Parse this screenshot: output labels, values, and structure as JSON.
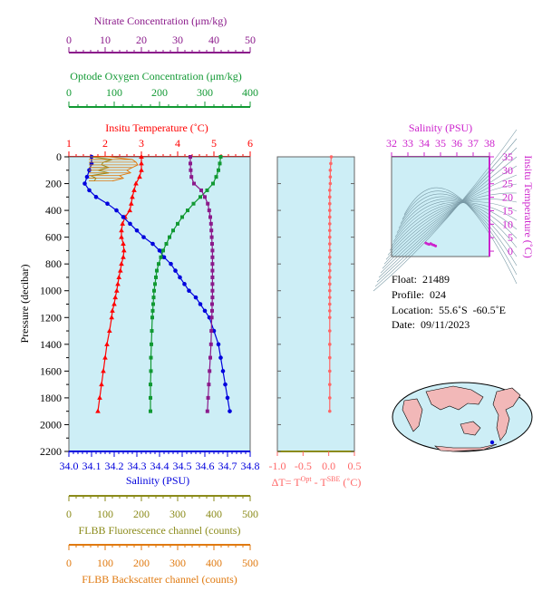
{
  "colors": {
    "nitrate": "#8b1a8b",
    "oxygen": "#119933",
    "temperature": "#ff0000",
    "salinity": "#0000dd",
    "fluor": "#8b8b1a",
    "backscatter": "#e07a10",
    "dt": "#ff6666",
    "inset_salinity": "#cc22cc",
    "panel_bg": "#cdeef6"
  },
  "info": {
    "float_label": "Float:",
    "float_value": "21489",
    "profile_label": "Profile:",
    "profile_value": "024",
    "location_label": "Location:",
    "location_value": "55.6˚S  -60.5˚E",
    "date_label": "Date:",
    "date_value": "09/11/2023"
  },
  "chart_data": [
    {
      "type": "line",
      "name": "main-profile",
      "ylabel": "Pressure (decibar)",
      "ylim": [
        2200,
        0
      ],
      "yticks": [
        0,
        200,
        400,
        600,
        800,
        1000,
        1200,
        1400,
        1600,
        1800,
        2000,
        2200
      ],
      "axes": {
        "nitrate": {
          "label": "Nitrate Concentration (μm/kg)",
          "range": [
            0,
            50
          ],
          "ticks": [
            0,
            10,
            20,
            30,
            40,
            50
          ]
        },
        "oxygen": {
          "label": "Optode Oxygen Concentration (μm/kg)",
          "range": [
            0,
            400
          ],
          "ticks": [
            0,
            100,
            200,
            300,
            400
          ]
        },
        "temperature": {
          "label": "Insitu Temperature (˚C)",
          "range": [
            1,
            6
          ],
          "ticks": [
            1,
            2,
            3,
            4,
            5,
            6
          ]
        },
        "salinity": {
          "label": "Salinity (PSU)",
          "range": [
            34.0,
            34.8
          ],
          "ticks": [
            "34.0",
            "34.1",
            "34.2",
            "34.3",
            "34.4",
            "34.5",
            "34.6",
            "34.7",
            "34.8"
          ]
        },
        "fluor": {
          "label": "FLBB Fluorescence channel (counts)",
          "range": [
            0,
            500
          ],
          "ticks": [
            0,
            100,
            200,
            300,
            400,
            500
          ]
        },
        "backscatter": {
          "label": "FLBB Backscatter channel (counts)",
          "range": [
            0,
            500
          ],
          "ticks": [
            0,
            100,
            200,
            300,
            400,
            500
          ]
        }
      },
      "series": [
        {
          "name": "Temperature",
          "axis": "temperature",
          "marker": "triangle",
          "points": [
            [
              0,
              3.0
            ],
            [
              50,
              3.0
            ],
            [
              100,
              3.0
            ],
            [
              150,
              2.95
            ],
            [
              200,
              2.85
            ],
            [
              250,
              2.8
            ],
            [
              300,
              2.75
            ],
            [
              350,
              2.72
            ],
            [
              400,
              2.68
            ],
            [
              450,
              2.55
            ],
            [
              500,
              2.48
            ],
            [
              550,
              2.45
            ],
            [
              600,
              2.45
            ],
            [
              650,
              2.5
            ],
            [
              700,
              2.52
            ],
            [
              750,
              2.5
            ],
            [
              800,
              2.45
            ],
            [
              850,
              2.42
            ],
            [
              900,
              2.38
            ],
            [
              950,
              2.35
            ],
            [
              1000,
              2.32
            ],
            [
              1050,
              2.28
            ],
            [
              1100,
              2.25
            ],
            [
              1150,
              2.2
            ],
            [
              1200,
              2.18
            ],
            [
              1300,
              2.12
            ],
            [
              1400,
              2.05
            ],
            [
              1500,
              2.0
            ],
            [
              1600,
              1.95
            ],
            [
              1700,
              1.9
            ],
            [
              1800,
              1.85
            ],
            [
              1900,
              1.8
            ]
          ]
        },
        {
          "name": "Salinity",
          "axis": "salinity",
          "marker": "circle",
          "points": [
            [
              0,
              34.1
            ],
            [
              50,
              34.1
            ],
            [
              100,
              34.09
            ],
            [
              150,
              34.08
            ],
            [
              200,
              34.07
            ],
            [
              250,
              34.09
            ],
            [
              300,
              34.12
            ],
            [
              350,
              34.17
            ],
            [
              400,
              34.21
            ],
            [
              450,
              34.24
            ],
            [
              500,
              34.27
            ],
            [
              550,
              34.3
            ],
            [
              600,
              34.33
            ],
            [
              650,
              34.37
            ],
            [
              700,
              34.4
            ],
            [
              750,
              34.42
            ],
            [
              800,
              34.45
            ],
            [
              850,
              34.47
            ],
            [
              900,
              34.49
            ],
            [
              950,
              34.51
            ],
            [
              1000,
              34.53
            ],
            [
              1050,
              34.56
            ],
            [
              1100,
              34.58
            ],
            [
              1150,
              34.6
            ],
            [
              1200,
              34.62
            ],
            [
              1300,
              34.64
            ],
            [
              1400,
              34.66
            ],
            [
              1500,
              34.67
            ],
            [
              1600,
              34.68
            ],
            [
              1700,
              34.69
            ],
            [
              1800,
              34.7
            ],
            [
              1900,
              34.71
            ]
          ]
        },
        {
          "name": "Oxygen",
          "axis": "oxygen",
          "marker": "square",
          "points": [
            [
              0,
              335
            ],
            [
              50,
              333
            ],
            [
              100,
              330
            ],
            [
              150,
              325
            ],
            [
              200,
              318
            ],
            [
              250,
              305
            ],
            [
              300,
              290
            ],
            [
              350,
              275
            ],
            [
              400,
              262
            ],
            [
              450,
              250
            ],
            [
              500,
              240
            ],
            [
              550,
              230
            ],
            [
              600,
              222
            ],
            [
              650,
              215
            ],
            [
              700,
              208
            ],
            [
              750,
              203
            ],
            [
              800,
              198
            ],
            [
              850,
              194
            ],
            [
              900,
              192
            ],
            [
              950,
              190
            ],
            [
              1000,
              188
            ],
            [
              1050,
              187
            ],
            [
              1100,
              186
            ],
            [
              1150,
              185
            ],
            [
              1200,
              184
            ],
            [
              1300,
              183
            ],
            [
              1400,
              182
            ],
            [
              1500,
              181
            ],
            [
              1600,
              181
            ],
            [
              1700,
              180
            ],
            [
              1800,
              180
            ],
            [
              1900,
              180
            ]
          ]
        },
        {
          "name": "Nitrate",
          "axis": "nitrate",
          "marker": "square",
          "points": [
            [
              0,
              33.5
            ],
            [
              50,
              33.5
            ],
            [
              100,
              33.6
            ],
            [
              150,
              33.8
            ],
            [
              200,
              34.5
            ],
            [
              250,
              36.5
            ],
            [
              300,
              37.5
            ],
            [
              350,
              38.3
            ],
            [
              400,
              38.7
            ],
            [
              450,
              39.0
            ],
            [
              500,
              39.2
            ],
            [
              550,
              39.3
            ],
            [
              600,
              39.4
            ],
            [
              650,
              39.5
            ],
            [
              700,
              39.6
            ],
            [
              750,
              39.6
            ],
            [
              800,
              39.6
            ],
            [
              850,
              39.6
            ],
            [
              900,
              39.6
            ],
            [
              950,
              39.6
            ],
            [
              1000,
              39.6
            ],
            [
              1050,
              39.6
            ],
            [
              1100,
              39.5
            ],
            [
              1150,
              39.5
            ],
            [
              1200,
              39.4
            ],
            [
              1300,
              39.3
            ],
            [
              1400,
              39.2
            ],
            [
              1500,
              39.0
            ],
            [
              1600,
              38.8
            ],
            [
              1700,
              38.6
            ],
            [
              1800,
              38.4
            ],
            [
              1900,
              38.2
            ]
          ]
        },
        {
          "name": "Fluorescence",
          "axis": "fluor",
          "marker": "none",
          "points": [
            [
              0,
              60
            ],
            [
              20,
              120
            ],
            [
              40,
              95
            ],
            [
              60,
              90
            ],
            [
              80,
              110
            ],
            [
              100,
              80
            ],
            [
              120,
              110
            ],
            [
              140,
              60
            ],
            [
              160,
              75
            ],
            [
              180,
              70
            ]
          ]
        },
        {
          "name": "Backscatter",
          "axis": "backscatter",
          "marker": "none",
          "points": [
            [
              0,
              110
            ],
            [
              20,
              175
            ],
            [
              40,
              185
            ],
            [
              60,
              190
            ],
            [
              80,
              175
            ],
            [
              100,
              160
            ],
            [
              120,
              170
            ],
            [
              140,
              140
            ],
            [
              160,
              150
            ],
            [
              180,
              120
            ]
          ]
        }
      ]
    },
    {
      "type": "line",
      "name": "delta-t",
      "xlabel": "ΔT= T",
      "xlabel_sup1": "Opt",
      "xlabel_mid": " - T",
      "xlabel_sup2": "SBE",
      "xlabel_end": " (˚C)",
      "xlim": [
        -1.0,
        0.5
      ],
      "xticks": [
        "-1.0",
        "-0.5",
        "0.0",
        "0.5"
      ],
      "ylim": [
        2200,
        0
      ],
      "values_pressure": [
        0,
        50,
        100,
        150,
        200,
        250,
        300,
        350,
        400,
        450,
        500,
        550,
        600,
        650,
        700,
        750,
        800,
        850,
        900,
        950,
        1000,
        1050,
        1100,
        1150,
        1200,
        1300,
        1400,
        1500,
        1600,
        1700,
        1800,
        1900
      ],
      "values": [
        0.05,
        0.04,
        0.03,
        0.03,
        0.03,
        0.02,
        0.02,
        0.02,
        0.02,
        0.02,
        0.02,
        0.02,
        0.02,
        0.02,
        0.02,
        0.02,
        0.02,
        0.02,
        0.02,
        0.02,
        0.02,
        0.02,
        0.02,
        0.02,
        0.02,
        0.02,
        0.02,
        0.02,
        0.02,
        0.02,
        0.02,
        0.02
      ]
    },
    {
      "type": "scatter",
      "name": "ts-inset",
      "xlabel": "Salinity (PSU)",
      "ylabel": "Insitu Temperature (˚C)",
      "xlim": [
        32,
        38
      ],
      "ylim": [
        -2,
        35
      ],
      "xticks": [
        32,
        33,
        34,
        35,
        36,
        37,
        38
      ],
      "yticks": [
        0,
        5,
        10,
        15,
        20,
        25,
        30,
        35
      ],
      "points": [
        [
          34.1,
          3.0
        ],
        [
          34.3,
          2.5
        ],
        [
          34.5,
          2.4
        ],
        [
          34.6,
          2.2
        ],
        [
          34.7,
          1.9
        ],
        [
          34.4,
          2.8
        ],
        [
          34.2,
          2.7
        ]
      ]
    }
  ]
}
